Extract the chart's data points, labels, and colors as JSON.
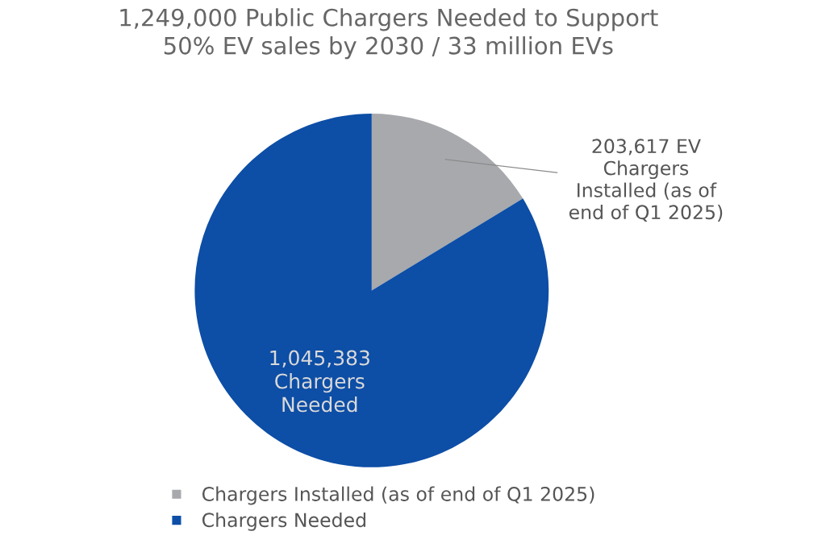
{
  "chart_data": {
    "type": "pie",
    "title": "1,249,000 Public Chargers Needed to Support\n50% EV sales by 2030 / 33 million EVs",
    "categories": [
      "Chargers Installed (as of end of Q1 2025)",
      "Chargers Needed"
    ],
    "values": [
      203617,
      1045383
    ],
    "colors": [
      "#a7a9ac",
      "#0d4ea6"
    ],
    "value_labels": [
      "203,617 EV\nChargers\nInstalled (as of\nend of Q1 2025)",
      "1,045,383\nChargers\nNeeded"
    ],
    "legend": "bottom"
  }
}
